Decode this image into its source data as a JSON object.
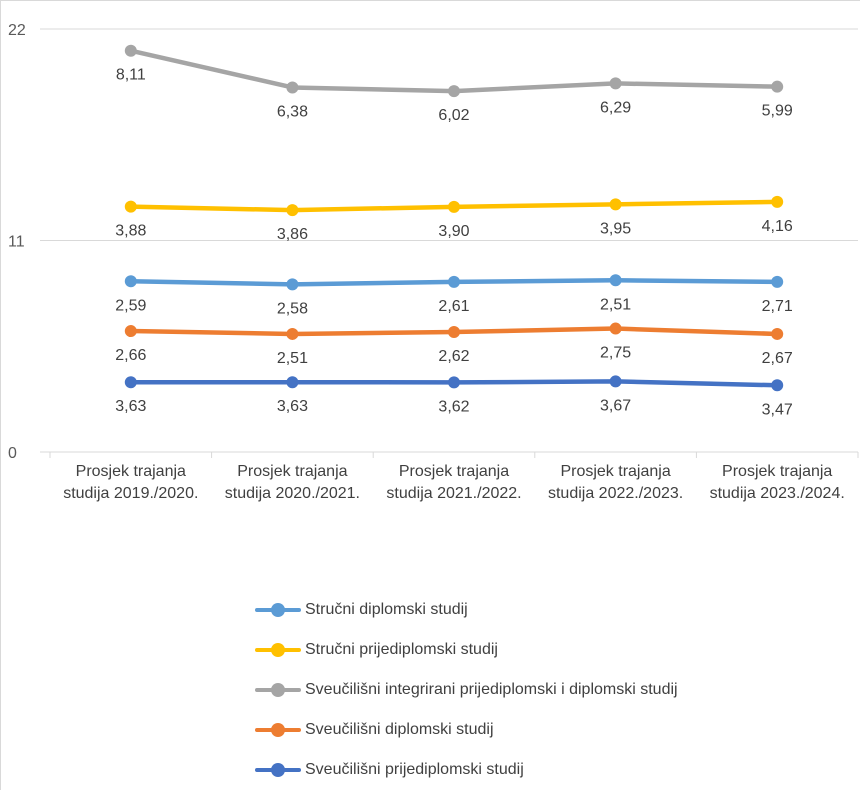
{
  "chart_data": {
    "type": "line",
    "title": "",
    "xlabel": "",
    "ylabel": "",
    "ylim": [
      0,
      22
    ],
    "y_ticks": [
      "0",
      "11",
      "22"
    ],
    "grid": "horizontal",
    "legend_position": "bottom",
    "categories": [
      [
        "Prosjek trajanja",
        "studija 2019./2020."
      ],
      [
        "Prosjek trajanja",
        "studija 2020./2021."
      ],
      [
        "Prosjek trajanja",
        "studija 2021./2022."
      ],
      [
        "Prosjek trajanja",
        "studija 2022./2023."
      ],
      [
        "Prosjek trajanja",
        "studija 2023./2024."
      ]
    ],
    "series": [
      {
        "name": "Stručni diplomski studij",
        "color": "#5b9bd5",
        "values": [
          2.59,
          2.58,
          2.61,
          2.51,
          2.71
        ],
        "labels": [
          "2,59",
          "2,58",
          "2,61",
          "2,51",
          "2,71"
        ]
      },
      {
        "name": "Stručni prijediplomski studij",
        "color": "#ffc000",
        "values": [
          3.88,
          3.86,
          3.9,
          3.95,
          4.16
        ],
        "labels": [
          "3,88",
          "3,86",
          "3,90",
          "3,95",
          "4,16"
        ]
      },
      {
        "name": "Sveučilišni integrirani prijediplomski i diplomski studij",
        "color": "#a5a5a5",
        "values": [
          8.11,
          6.38,
          6.02,
          6.29,
          5.99
        ],
        "labels": [
          "8,11",
          "6,38",
          "6,02",
          "6,29",
          "5,99"
        ]
      },
      {
        "name": "Sveučilišni diplomski studij",
        "color": "#ed7d31",
        "values": [
          2.66,
          2.51,
          2.62,
          2.75,
          2.67
        ],
        "labels": [
          "2,66",
          "2,51",
          "2,62",
          "2,75",
          "2,67"
        ]
      },
      {
        "name": "Sveučilišni prijediplomski studij",
        "color": "#4472c4",
        "values": [
          3.63,
          3.63,
          3.62,
          3.67,
          3.47
        ],
        "labels": [
          "3,63",
          "3,63",
          "3,62",
          "3,67",
          "3,47"
        ]
      }
    ]
  }
}
